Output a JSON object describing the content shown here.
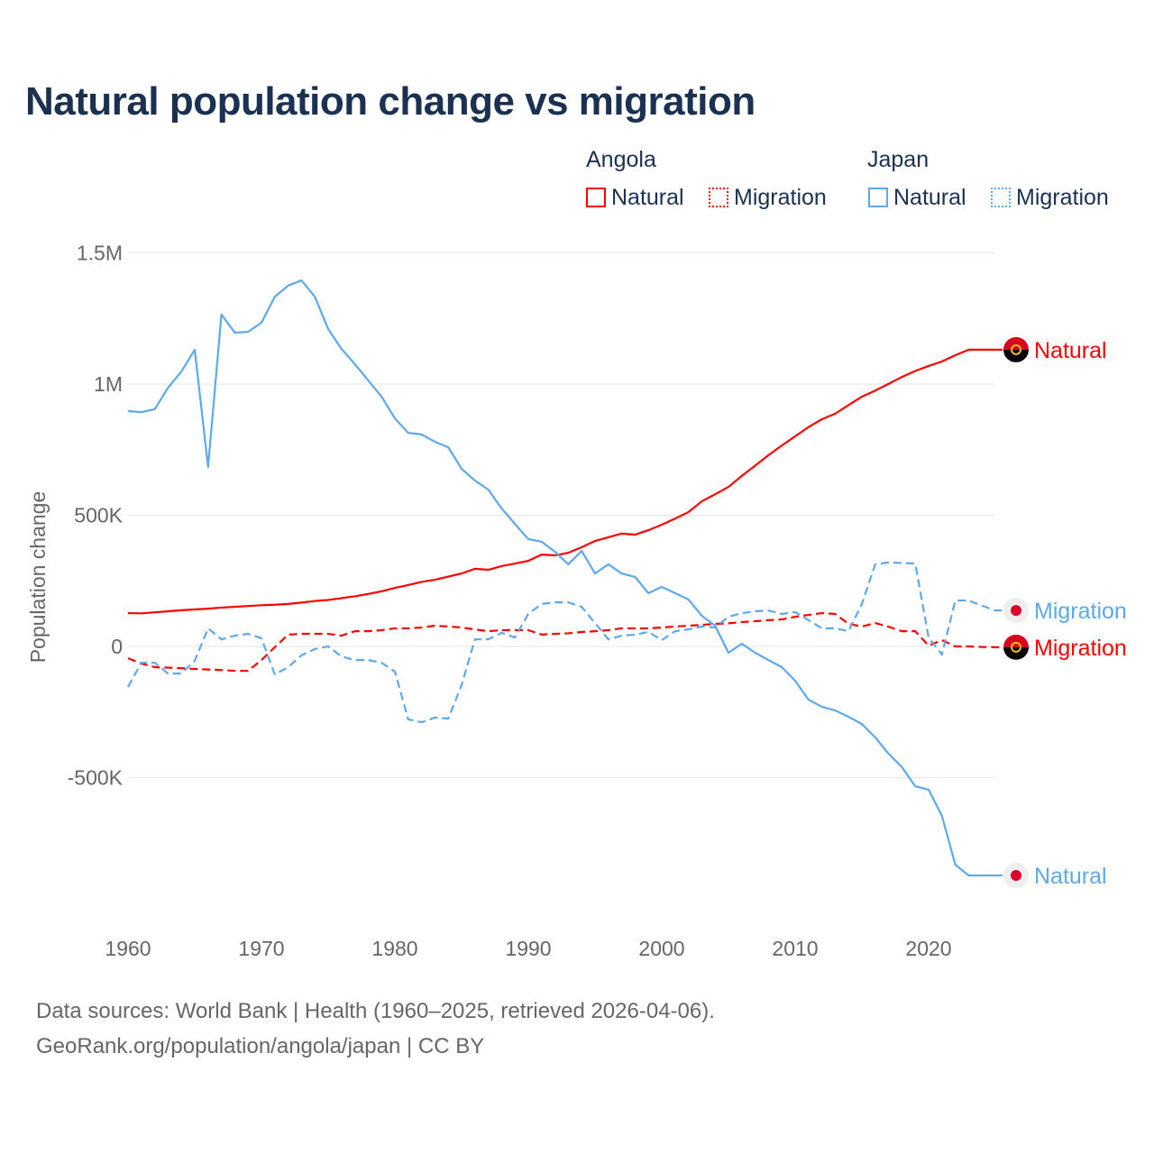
{
  "chart_data": {
    "type": "line",
    "title": "Natural population change vs migration",
    "ylabel": "Population change",
    "xlabel": "",
    "xlim": [
      1960,
      2025
    ],
    "ylim": [
      -1000000,
      1500000
    ],
    "x_ticks": [
      1960,
      1970,
      1980,
      1990,
      2000,
      2010,
      2020
    ],
    "x_tick_labels": [
      "1960",
      "1970",
      "1980",
      "1990",
      "2000",
      "2010",
      "2020"
    ],
    "y_ticks": [
      -500000,
      0,
      500000,
      1000000,
      1500000
    ],
    "y_tick_labels": [
      "-500K",
      "0",
      "500K",
      "1M",
      "1.5M"
    ],
    "grid": true,
    "legend": {
      "position": "top-right",
      "groups": [
        {
          "name": "Angola",
          "items": [
            "Natural",
            "Migration"
          ]
        },
        {
          "name": "Japan",
          "items": [
            "Natural",
            "Migration"
          ]
        }
      ]
    },
    "colors": {
      "Angola": "#ff0000",
      "Japan": "#5ea8ec"
    },
    "series": [
      {
        "name": "Angola Natural",
        "country": "Angola",
        "label": "Natural",
        "style": "solid",
        "start_year": 1960,
        "values_millions": [
          0.127,
          0.126,
          0.13,
          0.134,
          0.138,
          0.141,
          0.144,
          0.148,
          0.151,
          0.154,
          0.157,
          0.159,
          0.162,
          0.167,
          0.173,
          0.177,
          0.184,
          0.191,
          0.2,
          0.21,
          0.223,
          0.234,
          0.246,
          0.254,
          0.266,
          0.278,
          0.296,
          0.292,
          0.306,
          0.316,
          0.326,
          0.35,
          0.347,
          0.357,
          0.378,
          0.402,
          0.416,
          0.43,
          0.426,
          0.443,
          0.464,
          0.487,
          0.512,
          0.553,
          0.58,
          0.608,
          0.65,
          0.689,
          0.729,
          0.766,
          0.801,
          0.836,
          0.866,
          0.887,
          0.92,
          0.952,
          0.975,
          1.001,
          1.027,
          1.05,
          1.069,
          1.086,
          1.11,
          1.131
        ]
      },
      {
        "name": "Angola Migration",
        "country": "Angola",
        "label": "Migration",
        "style": "dashed",
        "start_year": 1960,
        "values_millions": [
          -0.045,
          -0.065,
          -0.079,
          -0.081,
          -0.083,
          -0.086,
          -0.088,
          -0.09,
          -0.093,
          -0.093,
          -0.052,
          -0.003,
          0.045,
          0.048,
          0.048,
          0.048,
          0.041,
          0.058,
          0.058,
          0.062,
          0.069,
          0.069,
          0.072,
          0.079,
          0.076,
          0.072,
          0.065,
          0.058,
          0.062,
          0.062,
          0.062,
          0.045,
          0.048,
          0.05,
          0.055,
          0.058,
          0.062,
          0.069,
          0.069,
          0.069,
          0.072,
          0.076,
          0.079,
          0.082,
          0.086,
          0.088,
          0.093,
          0.096,
          0.1,
          0.103,
          0.113,
          0.12,
          0.127,
          0.124,
          0.086,
          0.076,
          0.089,
          0.075,
          0.058,
          0.058,
          0.003,
          0.024,
          0,
          0,
          -0.002,
          -0.003
        ]
      },
      {
        "name": "Japan Natural",
        "country": "Japan",
        "label": "Natural",
        "style": "solid",
        "start_year": 1960,
        "values_millions": [
          0.897,
          0.893,
          0.904,
          0.986,
          1.048,
          1.131,
          0.684,
          1.265,
          1.196,
          1.199,
          1.234,
          1.333,
          1.375,
          1.395,
          1.333,
          1.21,
          1.134,
          1.076,
          1.014,
          0.952,
          0.869,
          0.814,
          0.808,
          0.78,
          0.759,
          0.677,
          0.632,
          0.598,
          0.526,
          0.467,
          0.409,
          0.399,
          0.361,
          0.313,
          0.364,
          0.278,
          0.313,
          0.278,
          0.265,
          0.203,
          0.227,
          0.203,
          0.179,
          0.117,
          0.079,
          -0.024,
          0.01,
          -0.024,
          -0.052,
          -0.079,
          -0.131,
          -0.203,
          -0.23,
          -0.244,
          -0.268,
          -0.296,
          -0.347,
          -0.409,
          -0.46,
          -0.533,
          -0.546,
          -0.646,
          -0.832,
          -0.873
        ]
      },
      {
        "name": "Japan Migration",
        "country": "Japan",
        "label": "Migration",
        "style": "dashed",
        "start_year": 1960,
        "values_millions": [
          -0.155,
          -0.062,
          -0.062,
          -0.103,
          -0.103,
          -0.055,
          0.069,
          0.027,
          0.041,
          0.048,
          0.031,
          -0.107,
          -0.079,
          -0.034,
          -0.01,
          0,
          -0.038,
          -0.052,
          -0.052,
          -0.062,
          -0.096,
          -0.278,
          -0.289,
          -0.271,
          -0.275,
          -0.148,
          0.027,
          0.027,
          0.052,
          0.034,
          0.124,
          0.162,
          0.168,
          0.168,
          0.151,
          0.089,
          0.027,
          0.041,
          0.045,
          0.055,
          0.024,
          0.058,
          0.065,
          0.076,
          0.072,
          0.113,
          0.127,
          0.134,
          0.137,
          0.124,
          0.131,
          0.1,
          0.069,
          0.069,
          0.058,
          0.162,
          0.313,
          0.32,
          0.318,
          0.316,
          0.034,
          -0.031,
          0.175,
          0.175,
          0.155,
          0.137
        ]
      }
    ],
    "end_labels": [
      {
        "series": 0,
        "text": "Natural"
      },
      {
        "series": 3,
        "text": "Migration"
      },
      {
        "series": 1,
        "text": "Migration"
      },
      {
        "series": 2,
        "text": "Natural"
      }
    ]
  },
  "legend": {
    "angola": "Angola",
    "japan": "Japan",
    "natural": "Natural",
    "migration": "Migration"
  },
  "footer": {
    "line1": "Data sources: World Bank | Health (1960–2025, retrieved 2026-04-06).",
    "line2": "GeoRank.org/population/angola/japan | CC BY"
  }
}
